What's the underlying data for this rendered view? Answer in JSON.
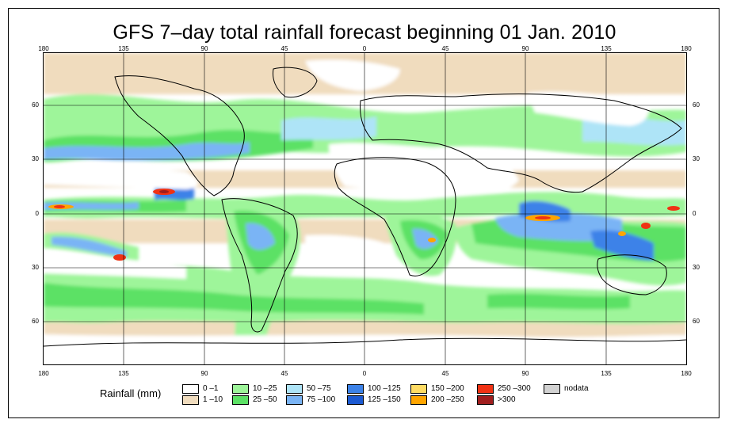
{
  "title": "GFS 7–day total rainfall forecast beginning 01 Jan. 2010",
  "lon_labels": [
    "180",
    "135",
    "90",
    "45",
    "0",
    "45",
    "90",
    "135",
    "180"
  ],
  "lat_labels": [
    "60",
    "30",
    "0",
    "30",
    "60"
  ],
  "legend": {
    "title": "Rainfall (mm)",
    "items": [
      {
        "label": "0 –1",
        "color": "#ffffff"
      },
      {
        "label": "1 –10",
        "color": "#f0dcbe"
      },
      {
        "label": "10 –25",
        "color": "#9ef59a"
      },
      {
        "label": "25 –50",
        "color": "#5ce165"
      },
      {
        "label": "50 –75",
        "color": "#aee4f7"
      },
      {
        "label": "75 –100",
        "color": "#7ab4f5"
      },
      {
        "label": "100 –125",
        "color": "#3c82e8"
      },
      {
        "label": "125 –150",
        "color": "#1c5ad2"
      },
      {
        "label": "150 –200",
        "color": "#ffdc64"
      },
      {
        "label": "200 –250",
        "color": "#ffa500"
      },
      {
        "label": "250 –300",
        "color": "#f03214"
      },
      {
        "label": ">300",
        "color": "#a01e1e"
      },
      {
        "label": "nodata",
        "color": "#d2d2d2"
      }
    ]
  }
}
